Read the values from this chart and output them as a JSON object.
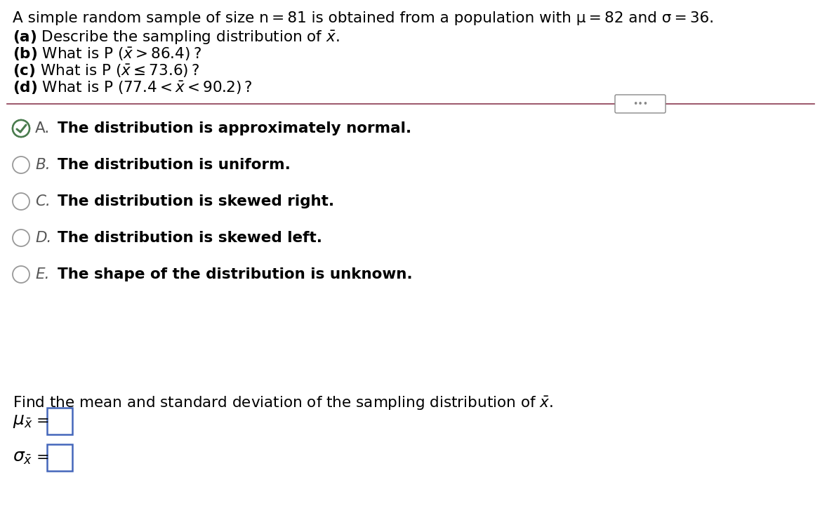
{
  "separator_color": "#8B3A52",
  "background_color": "#ffffff",
  "text_color": "#000000",
  "choice_label_color": "#555555",
  "circle_color": "#999999",
  "checked_color": "#4a7c4e",
  "box_color": "#4466bb",
  "ellipsis_color": "#888888",
  "title_fs": 15.5,
  "q_fs": 15.5,
  "choice_fs": 15.5,
  "footer_fs": 15.5,
  "label_fs": 15.0,
  "choices": [
    "The distribution is approximately normal.",
    "The distribution is uniform.",
    "The distribution is skewed right.",
    "The distribution is skewed left.",
    "The shape of the distribution is unknown."
  ],
  "choice_labels": [
    "A.",
    "B.",
    "C.",
    "D.",
    "E."
  ],
  "correct_choice": 0
}
